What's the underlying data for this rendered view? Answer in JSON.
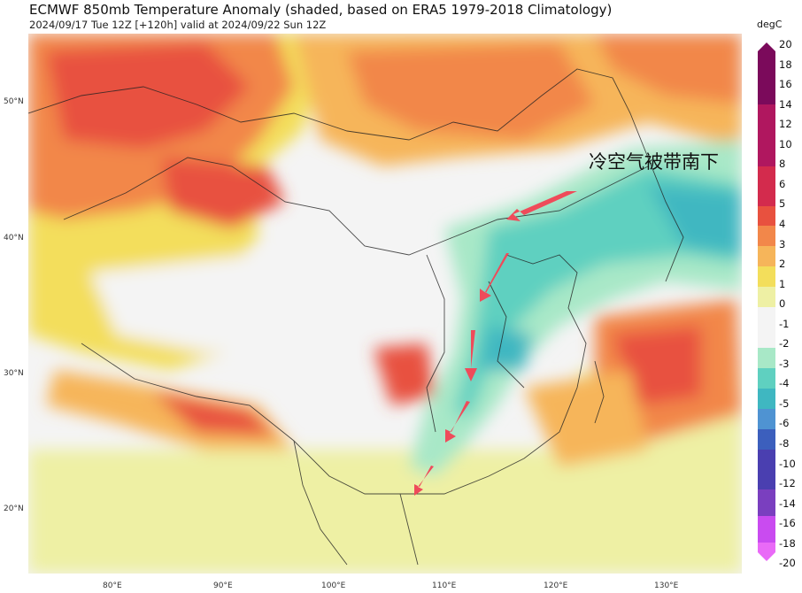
{
  "title": "ECMWF 850mb Temperature Anomaly (shaded, based on ERA5 1979-2018 Climatology)",
  "subtitle": "2024/09/17 Tue 12Z [+120h] valid at 2024/09/22 Sun 12Z",
  "annotation": "冷空气被带南下",
  "colorbar": {
    "unit": "degC",
    "ticks": [
      "20",
      "18",
      "16",
      "14",
      "12",
      "10",
      "8",
      "6",
      "5",
      "4",
      "3",
      "2",
      "1",
      "0",
      "-1",
      "-2",
      "-3",
      "-4",
      "-5",
      "-6",
      "-8",
      "-10",
      "-12",
      "-14",
      "-16",
      "-18",
      "-20"
    ],
    "colors": {
      "warm_max": "#7b0a5b",
      "hot": "#c2185b",
      "red": "#e8513f",
      "orange": "#f2874a",
      "light_orange": "#f6b55a",
      "yellow": "#f3de5b",
      "light_yellow": "#eef0a4",
      "neutral": "#f4f4f4",
      "light_cyan": "#a8e8c7",
      "cyan": "#5fd0c0",
      "teal": "#3fb7c1",
      "blue": "#4f93d2",
      "dark_blue": "#3c5fbd",
      "purple": "#7a3fbf",
      "violet": "#c94bf0",
      "magenta": "#e96af7"
    }
  },
  "lat_labels": [
    "50°N",
    "40°N",
    "30°N",
    "20°N"
  ],
  "lon_labels": [
    "80°E",
    "90°E",
    "100°E",
    "110°E",
    "120°E",
    "130°E"
  ],
  "arrow_color": "#ef4b5a"
}
